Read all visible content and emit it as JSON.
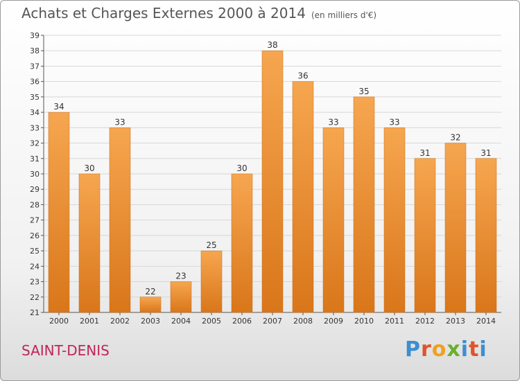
{
  "header": {
    "title": "Achats et Charges Externes 2000 à 2014",
    "subtitle": "(en milliers d'€)"
  },
  "footer": {
    "city": "SAINT-DENIS",
    "logo": [
      "P",
      "r",
      "o",
      "x",
      "i",
      "t",
      "i"
    ]
  },
  "colors": {
    "bar_top": "#f6a650",
    "bar_bottom": "#d9761a",
    "grid": "#d7d7d7",
    "axis_text": "#333333",
    "title": "#555555",
    "city": "#c0245c"
  },
  "chart_data": {
    "type": "bar",
    "title": "Achats et Charges Externes 2000 à 2014",
    "subtitle": "(en milliers d'€)",
    "xlabel": "",
    "ylabel": "",
    "categories": [
      "2000",
      "2001",
      "2002",
      "2003",
      "2004",
      "2005",
      "2006",
      "2007",
      "2008",
      "2009",
      "2010",
      "2011",
      "2012",
      "2013",
      "2014"
    ],
    "values": [
      34,
      30,
      33,
      22,
      23,
      25,
      30,
      38,
      36,
      33,
      35,
      33,
      31,
      32,
      31
    ],
    "ylim": [
      21,
      39
    ],
    "yticks": [
      21,
      22,
      23,
      24,
      25,
      26,
      27,
      28,
      29,
      30,
      31,
      32,
      33,
      34,
      35,
      36,
      37,
      38,
      39
    ],
    "grid": true,
    "legend": "none"
  }
}
